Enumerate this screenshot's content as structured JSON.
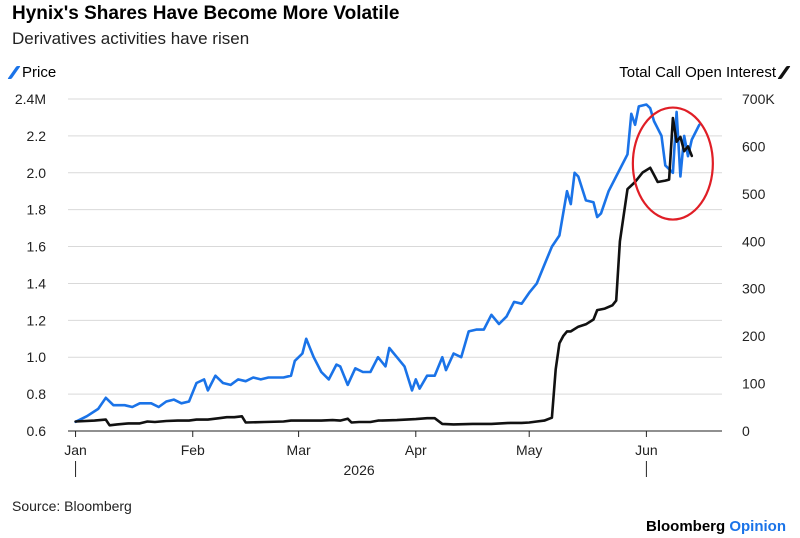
{
  "header": {
    "title": "Hynix's Shares Have Become More Volatile",
    "subtitle": "Derivatives activities have risen"
  },
  "footer": {
    "source": "Source: Bloomberg",
    "brand_a": "Bloomberg",
    "brand_b": "Opinion"
  },
  "colors": {
    "price": "#1a73e8",
    "call_oi": "#111111",
    "annotation": "#e01e26",
    "grid": "#d9d9d9"
  },
  "chart_data": {
    "type": "line",
    "x_axis": {
      "year_label": "2026",
      "ticks": [
        {
          "label": "Jan",
          "t": 0
        },
        {
          "label": "Feb",
          "t": 31
        },
        {
          "label": "Mar",
          "t": 59
        },
        {
          "label": "Apr",
          "t": 90
        },
        {
          "label": "May",
          "t": 120
        },
        {
          "label": "Jun",
          "t": 151
        }
      ],
      "range": [
        -2,
        171
      ]
    },
    "y_left": {
      "range": [
        0.6,
        2.4
      ],
      "ticks": [
        0.6,
        0.8,
        1.0,
        1.2,
        1.4,
        1.6,
        1.8,
        2.0,
        2.2
      ],
      "top_label": "2.4M"
    },
    "y_right": {
      "range": [
        0,
        700
      ],
      "ticks": [
        0,
        100,
        200,
        300,
        400,
        500,
        600
      ],
      "top_label": "700K"
    },
    "annotation": {
      "type": "circle",
      "x": 158,
      "y": 2.05,
      "note": ""
    },
    "series": [
      {
        "name": "Price",
        "axis": "left",
        "points": [
          [
            0,
            0.65
          ],
          [
            3,
            0.68
          ],
          [
            6,
            0.72
          ],
          [
            8,
            0.78
          ],
          [
            10,
            0.74
          ],
          [
            13,
            0.74
          ],
          [
            15,
            0.73
          ],
          [
            17,
            0.75
          ],
          [
            20,
            0.75
          ],
          [
            22,
            0.73
          ],
          [
            24,
            0.76
          ],
          [
            26,
            0.77
          ],
          [
            28,
            0.75
          ],
          [
            30,
            0.76
          ],
          [
            32,
            0.86
          ],
          [
            34,
            0.88
          ],
          [
            35,
            0.82
          ],
          [
            37,
            0.9
          ],
          [
            39,
            0.86
          ],
          [
            41,
            0.85
          ],
          [
            43,
            0.88
          ],
          [
            45,
            0.87
          ],
          [
            47,
            0.89
          ],
          [
            49,
            0.88
          ],
          [
            51,
            0.89
          ],
          [
            53,
            0.89
          ],
          [
            55,
            0.89
          ],
          [
            57,
            0.9
          ],
          [
            58,
            0.98
          ],
          [
            60,
            1.02
          ],
          [
            61,
            1.1
          ],
          [
            63,
            1.0
          ],
          [
            65,
            0.92
          ],
          [
            67,
            0.88
          ],
          [
            69,
            0.96
          ],
          [
            70,
            0.95
          ],
          [
            72,
            0.85
          ],
          [
            74,
            0.94
          ],
          [
            76,
            0.92
          ],
          [
            78,
            0.92
          ],
          [
            80,
            1.0
          ],
          [
            82,
            0.95
          ],
          [
            83,
            1.05
          ],
          [
            85,
            1.0
          ],
          [
            87,
            0.95
          ],
          [
            89,
            0.82
          ],
          [
            90,
            0.88
          ],
          [
            91,
            0.83
          ],
          [
            93,
            0.9
          ],
          [
            95,
            0.9
          ],
          [
            97,
            1.0
          ],
          [
            98,
            0.93
          ],
          [
            100,
            1.02
          ],
          [
            102,
            1.0
          ],
          [
            104,
            1.14
          ],
          [
            106,
            1.15
          ],
          [
            108,
            1.15
          ],
          [
            110,
            1.23
          ],
          [
            112,
            1.18
          ],
          [
            114,
            1.22
          ],
          [
            116,
            1.3
          ],
          [
            118,
            1.29
          ],
          [
            120,
            1.35
          ],
          [
            122,
            1.4
          ],
          [
            124,
            1.5
          ],
          [
            126,
            1.6
          ],
          [
            127,
            1.63
          ],
          [
            128,
            1.66
          ],
          [
            129,
            1.78
          ],
          [
            130,
            1.9
          ],
          [
            131,
            1.83
          ],
          [
            132,
            2.0
          ],
          [
            133,
            1.98
          ],
          [
            135,
            1.85
          ],
          [
            137,
            1.84
          ],
          [
            138,
            1.76
          ],
          [
            139,
            1.78
          ],
          [
            141,
            1.9
          ],
          [
            144,
            2.02
          ],
          [
            146,
            2.1
          ],
          [
            147,
            2.32
          ],
          [
            148,
            2.26
          ],
          [
            149,
            2.36
          ],
          [
            151,
            2.37
          ],
          [
            152,
            2.35
          ],
          [
            153,
            2.28
          ],
          [
            155,
            2.2
          ],
          [
            156,
            2.04
          ],
          [
            157,
            2.02
          ],
          [
            158,
            2.0
          ],
          [
            159,
            2.33
          ],
          [
            160,
            1.98
          ],
          [
            161,
            2.2
          ],
          [
            162,
            2.09
          ],
          [
            163,
            2.18
          ],
          [
            165,
            2.26
          ]
        ]
      },
      {
        "name": "Total Call Open Interest",
        "axis": "right",
        "points": [
          [
            0,
            20
          ],
          [
            5,
            22
          ],
          [
            8,
            24
          ],
          [
            9,
            12
          ],
          [
            11,
            14
          ],
          [
            14,
            16
          ],
          [
            17,
            16
          ],
          [
            19,
            20
          ],
          [
            21,
            19
          ],
          [
            24,
            21
          ],
          [
            27,
            22
          ],
          [
            30,
            22
          ],
          [
            32,
            24
          ],
          [
            35,
            24
          ],
          [
            38,
            27
          ],
          [
            40,
            29
          ],
          [
            42,
            29
          ],
          [
            44,
            31
          ],
          [
            45,
            18
          ],
          [
            50,
            19
          ],
          [
            55,
            20
          ],
          [
            57,
            22
          ],
          [
            59,
            22
          ],
          [
            62,
            22
          ],
          [
            65,
            22
          ],
          [
            68,
            23
          ],
          [
            70,
            22
          ],
          [
            72,
            26
          ],
          [
            73,
            18
          ],
          [
            75,
            19
          ],
          [
            78,
            19
          ],
          [
            80,
            22
          ],
          [
            85,
            23
          ],
          [
            90,
            25
          ],
          [
            93,
            27
          ],
          [
            95,
            27
          ],
          [
            97,
            15
          ],
          [
            100,
            14
          ],
          [
            105,
            15
          ],
          [
            110,
            15
          ],
          [
            115,
            17
          ],
          [
            118,
            17
          ],
          [
            120,
            18
          ],
          [
            122,
            20
          ],
          [
            124,
            22
          ],
          [
            126,
            28
          ],
          [
            127,
            130
          ],
          [
            128,
            185
          ],
          [
            129,
            200
          ],
          [
            130,
            210
          ],
          [
            131,
            210
          ],
          [
            133,
            220
          ],
          [
            135,
            225
          ],
          [
            137,
            235
          ],
          [
            138,
            255
          ],
          [
            140,
            258
          ],
          [
            142,
            265
          ],
          [
            143,
            275
          ],
          [
            144,
            400
          ],
          [
            146,
            510
          ],
          [
            148,
            525
          ],
          [
            150,
            545
          ],
          [
            152,
            555
          ],
          [
            153,
            540
          ],
          [
            154,
            525
          ],
          [
            156,
            528
          ],
          [
            157,
            530
          ],
          [
            158,
            660
          ],
          [
            159,
            610
          ],
          [
            160,
            620
          ],
          [
            161,
            590
          ],
          [
            162,
            600
          ],
          [
            163,
            580
          ]
        ]
      }
    ]
  }
}
